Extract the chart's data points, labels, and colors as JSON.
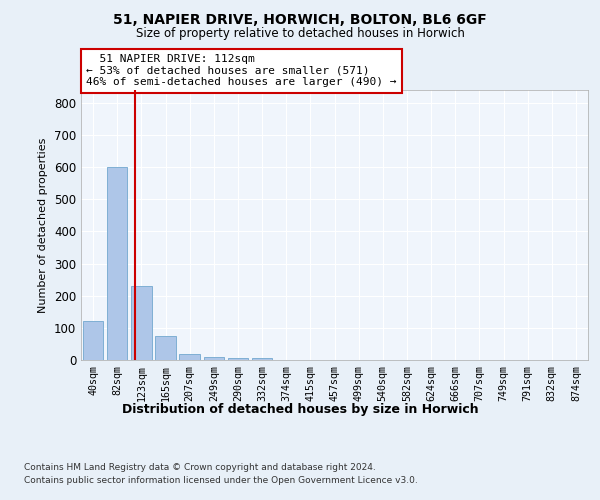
{
  "title1": "51, NAPIER DRIVE, HORWICH, BOLTON, BL6 6GF",
  "title2": "Size of property relative to detached houses in Horwich",
  "xlabel": "Distribution of detached houses by size in Horwich",
  "ylabel": "Number of detached properties",
  "footnote1": "Contains HM Land Registry data © Crown copyright and database right 2024.",
  "footnote2": "Contains public sector information licensed under the Open Government Licence v3.0.",
  "bin_labels": [
    "40sqm",
    "82sqm",
    "123sqm",
    "165sqm",
    "207sqm",
    "249sqm",
    "290sqm",
    "332sqm",
    "374sqm",
    "415sqm",
    "457sqm",
    "499sqm",
    "540sqm",
    "582sqm",
    "624sqm",
    "666sqm",
    "707sqm",
    "749sqm",
    "791sqm",
    "832sqm",
    "874sqm"
  ],
  "bar_values": [
    120,
    600,
    230,
    75,
    18,
    8,
    5,
    5,
    0,
    0,
    0,
    0,
    0,
    0,
    0,
    0,
    0,
    0,
    0,
    0,
    0
  ],
  "bar_color": "#aec6e8",
  "bar_edge_color": "#7fafd4",
  "red_line_x": 1.73,
  "ylim": [
    0,
    840
  ],
  "yticks": [
    0,
    100,
    200,
    300,
    400,
    500,
    600,
    700,
    800
  ],
  "annotation_line1": "  51 NAPIER DRIVE: 112sqm",
  "annotation_line2": "← 53% of detached houses are smaller (571)",
  "annotation_line3": "46% of semi-detached houses are larger (490) →",
  "annotation_box_color": "#ffffff",
  "annotation_box_edge": "#cc0000",
  "bg_color": "#e8f0f8",
  "plot_bg_color": "#f0f5fc",
  "grid_color": "#ffffff"
}
